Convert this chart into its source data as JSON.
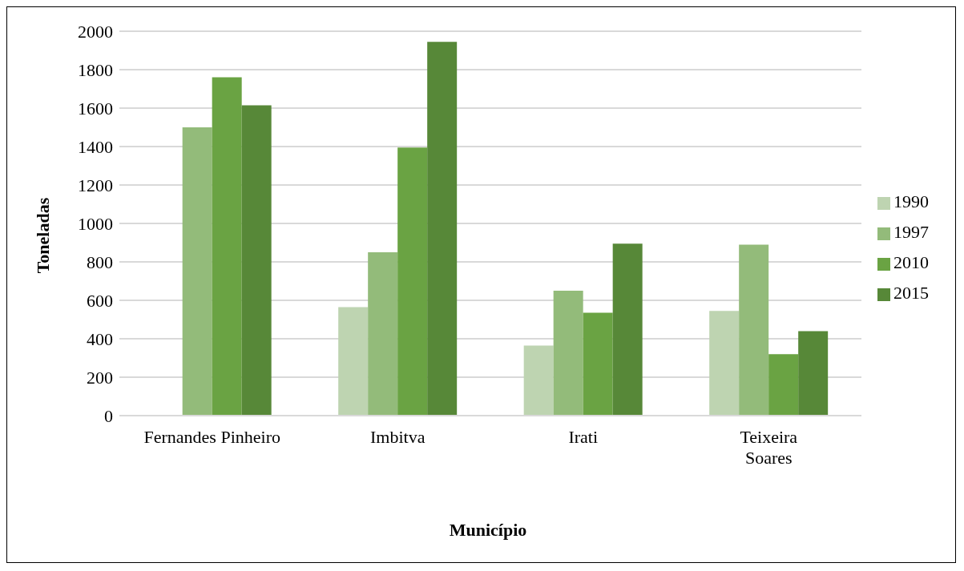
{
  "chart_data": {
    "type": "bar",
    "xlabel": "Município",
    "ylabel": "Toneladas",
    "categories": [
      "Fernandes Pinheiro",
      "Imbitva",
      "Irati",
      "Teixeira Soares"
    ],
    "series": [
      {
        "name": "1990",
        "color": "#bed4b1",
        "values": [
          null,
          565,
          365,
          545
        ]
      },
      {
        "name": "1997",
        "color": "#93bb7a",
        "values": [
          1500,
          850,
          650,
          890
        ]
      },
      {
        "name": "2010",
        "color": "#6aa343",
        "values": [
          1760,
          1395,
          535,
          320
        ]
      },
      {
        "name": "2015",
        "color": "#578838",
        "values": [
          1615,
          1945,
          895,
          440
        ]
      }
    ],
    "ylim": [
      0,
      2000
    ],
    "yticks": [
      0,
      200,
      400,
      600,
      800,
      1000,
      1200,
      1400,
      1600,
      1800,
      2000
    ],
    "grid": "y",
    "legend": "right"
  }
}
